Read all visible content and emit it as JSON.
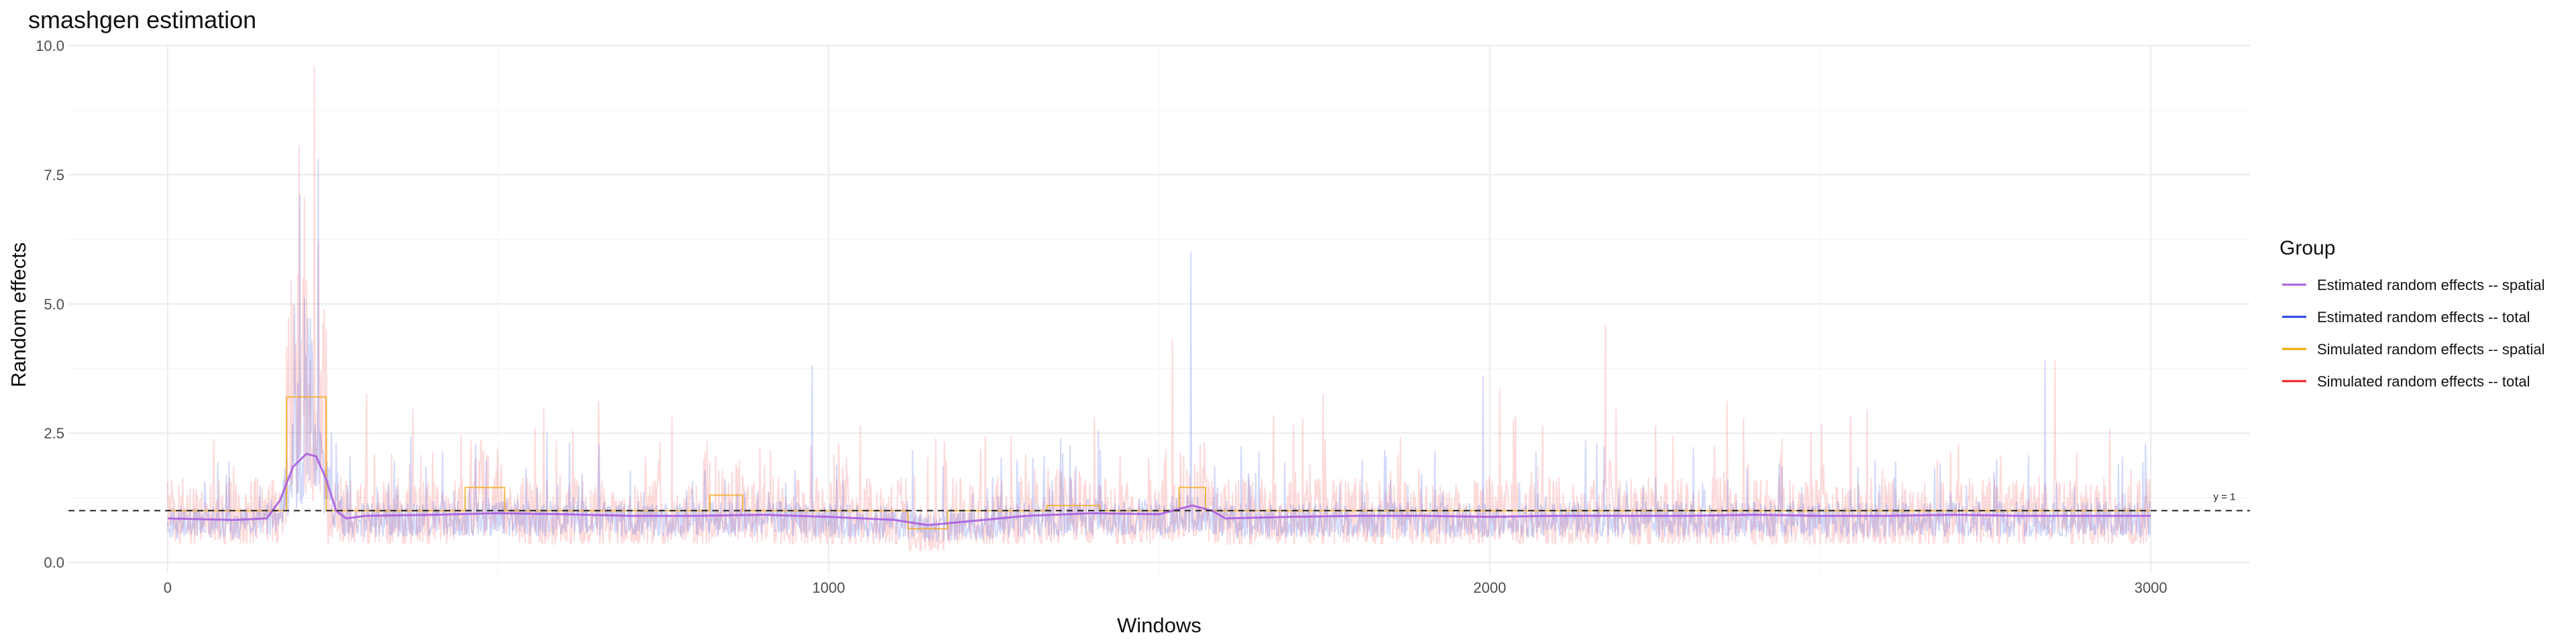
{
  "chart_data": {
    "type": "line",
    "title": "smashgen estimation",
    "xlabel": "Windows",
    "ylabel": "Random effects",
    "xlim": [
      -150,
      3150
    ],
    "ylim": [
      -0.2,
      10.0
    ],
    "x_ticks": [
      0,
      1000,
      2000,
      3000
    ],
    "x_tick_labels": [
      "0",
      "1000",
      "2000",
      "3000"
    ],
    "y_ticks": [
      0.0,
      2.5,
      5.0,
      7.5,
      10.0
    ],
    "y_tick_labels": [
      "0.0",
      "2.5",
      "5.0",
      "7.5",
      "10.0"
    ],
    "grid": true,
    "legend": {
      "title": "Group",
      "position": "right",
      "entries": [
        {
          "label": "Estimated random effects -- spatial",
          "color": "#a95ee0"
        },
        {
          "label": "Estimated random effects -- total",
          "color": "#1f3fe6"
        },
        {
          "label": "Simulated random effects -- spatial",
          "color": "#f0a500"
        },
        {
          "label": "Simulated random effects -- total",
          "color": "#f01818"
        }
      ]
    },
    "reference_line": {
      "y": 1,
      "label": "y = 1",
      "style": "dashed"
    },
    "n_windows": 3000,
    "series": [
      {
        "name": "Simulated random effects -- spatial",
        "kind": "piecewise",
        "color": "#f0a500",
        "baseline": 1.0,
        "segments": [
          {
            "x0": 180,
            "x1": 240,
            "value": 3.2
          },
          {
            "x0": 450,
            "x1": 510,
            "value": 1.45
          },
          {
            "x0": 820,
            "x1": 870,
            "value": 1.3
          },
          {
            "x0": 1120,
            "x1": 1180,
            "value": 0.65
          },
          {
            "x0": 1330,
            "x1": 1410,
            "value": 1.1
          },
          {
            "x0": 1530,
            "x1": 1570,
            "value": 1.45
          }
        ]
      },
      {
        "name": "Estimated random effects -- spatial",
        "kind": "smooth",
        "color": "#a95ee0",
        "points": [
          [
            0,
            0.85
          ],
          [
            100,
            0.82
          ],
          [
            150,
            0.85
          ],
          [
            170,
            1.2
          ],
          [
            190,
            1.85
          ],
          [
            210,
            2.1
          ],
          [
            225,
            2.05
          ],
          [
            240,
            1.6
          ],
          [
            255,
            1.0
          ],
          [
            270,
            0.85
          ],
          [
            300,
            0.9
          ],
          [
            400,
            0.92
          ],
          [
            500,
            0.95
          ],
          [
            600,
            0.93
          ],
          [
            700,
            0.9
          ],
          [
            800,
            0.9
          ],
          [
            900,
            0.92
          ],
          [
            1000,
            0.88
          ],
          [
            1100,
            0.82
          ],
          [
            1150,
            0.72
          ],
          [
            1200,
            0.78
          ],
          [
            1300,
            0.9
          ],
          [
            1400,
            0.95
          ],
          [
            1500,
            0.93
          ],
          [
            1550,
            1.1
          ],
          [
            1580,
            1.0
          ],
          [
            1600,
            0.85
          ],
          [
            1700,
            0.88
          ],
          [
            1800,
            0.9
          ],
          [
            1900,
            0.9
          ],
          [
            2000,
            0.88
          ],
          [
            2100,
            0.9
          ],
          [
            2200,
            0.9
          ],
          [
            2300,
            0.9
          ],
          [
            2400,
            0.92
          ],
          [
            2500,
            0.9
          ],
          [
            2600,
            0.9
          ],
          [
            2700,
            0.92
          ],
          [
            2800,
            0.9
          ],
          [
            2900,
            0.9
          ],
          [
            3000,
            0.9
          ]
        ]
      },
      {
        "name": "Simulated random effects -- total",
        "kind": "noisy",
        "color": "#f01818",
        "approx_max": 9.6,
        "approx_min": 0.0
      },
      {
        "name": "Estimated random effects -- total",
        "kind": "noisy",
        "color": "#1f3fe6",
        "approx_max": 7.8,
        "approx_min": 0.4
      }
    ]
  }
}
